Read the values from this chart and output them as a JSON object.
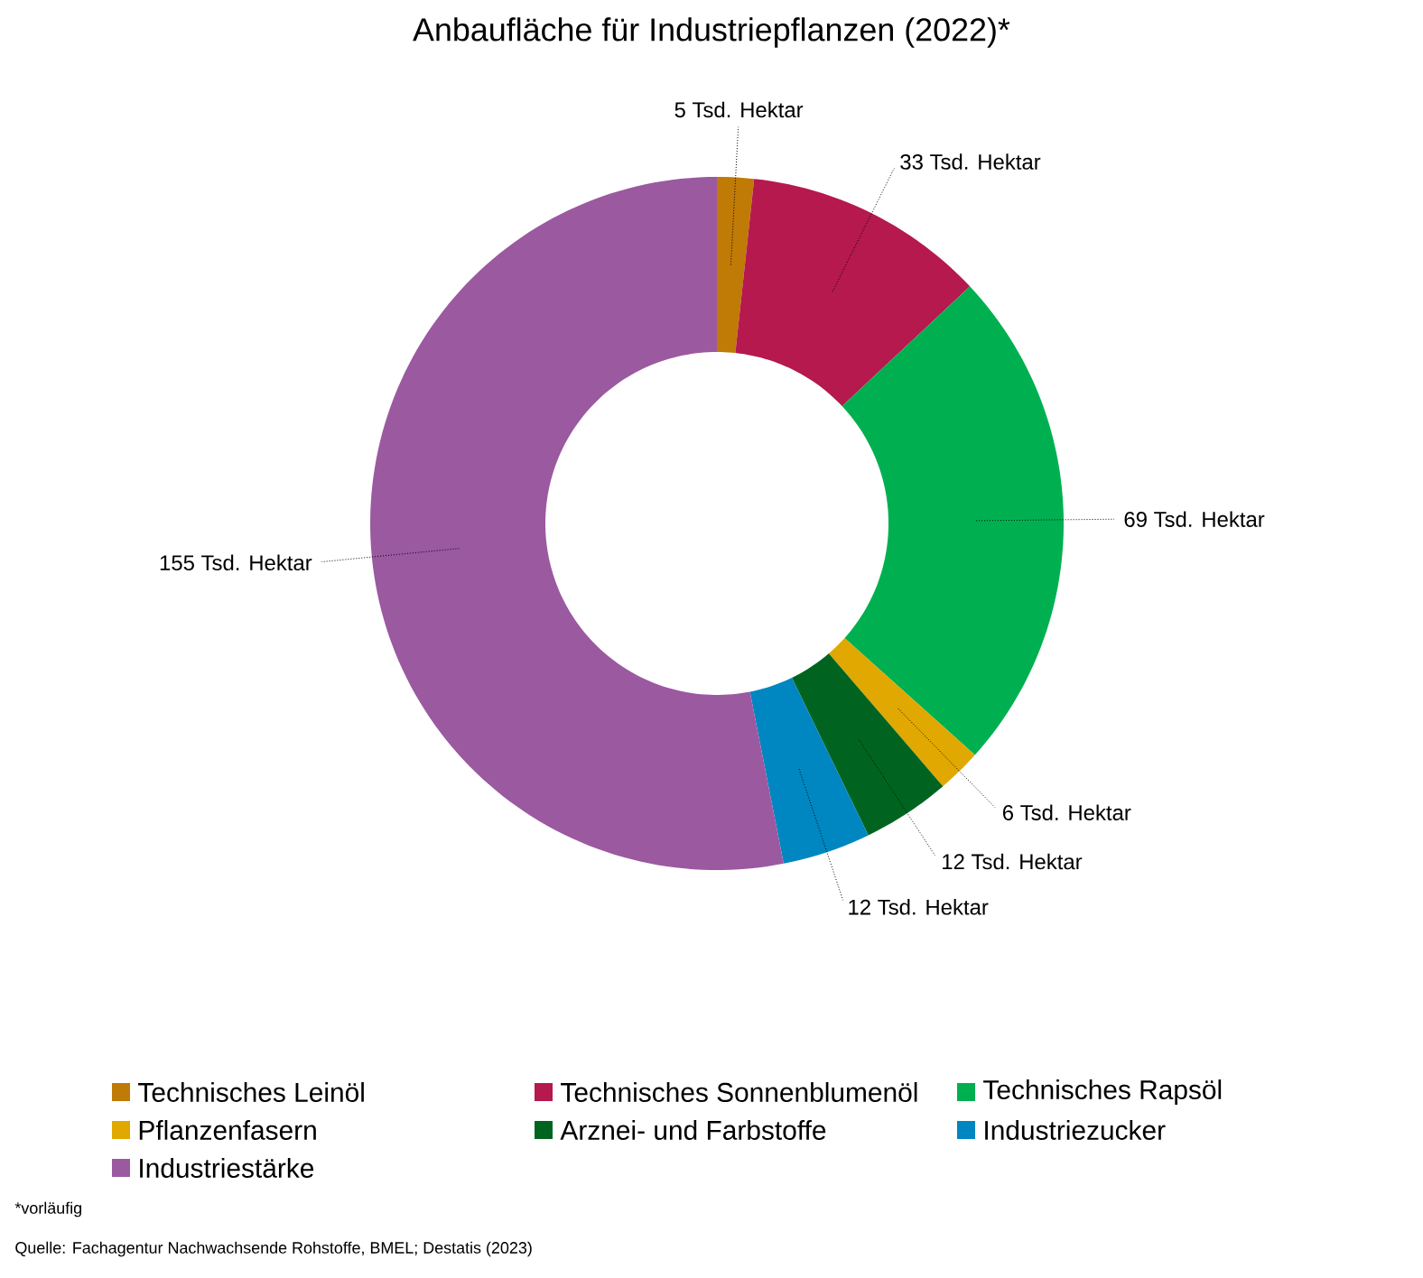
{
  "chart_data": {
    "type": "donut",
    "title": "Anbaufläche für Industriepflanzen (2022)*",
    "categories": [
      "Technisches Leinöl",
      "Technisches Sonnenblumenöl",
      "Technisches Rapsöl",
      "Pflanzenfasern",
      "Arznei- und Farbstoffe",
      "Industriezucker",
      "Industriestärke"
    ],
    "values": [
      5,
      33,
      69,
      6,
      12,
      12,
      155
    ],
    "colors": [
      "#c07a06",
      "#b5194e",
      "#00b050",
      "#e0a800",
      "#006420",
      "#0086c0",
      "#9b59a0"
    ],
    "value_labels": [
      "5 Tsd. Hektar",
      "33 Tsd. Hektar",
      "69 Tsd. Hektar",
      "6 Tsd. Hektar",
      "12 Tsd. Hektar",
      "12 Tsd. Hektar",
      "155 Tsd. Hektar"
    ],
    "legend": "bottom",
    "annotations": [
      "*vorläufig",
      "Quelle: Fachagentur Nachwachsende Rohstoffe, BMEL; Destatis (2023)"
    ]
  }
}
